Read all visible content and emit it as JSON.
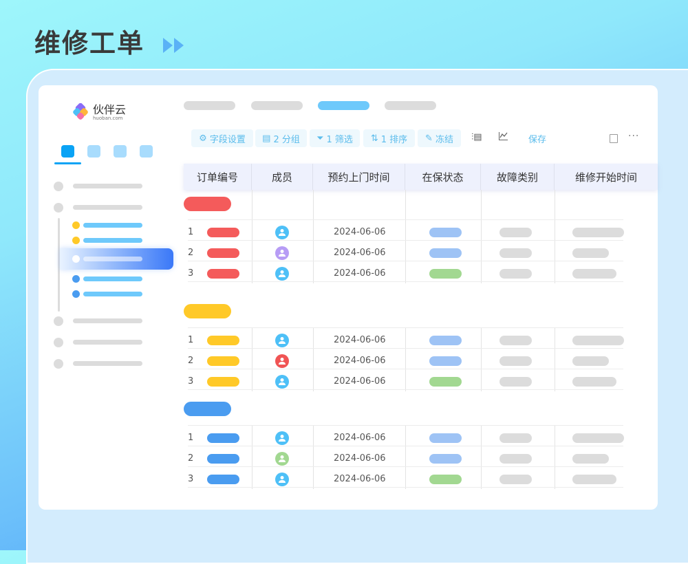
{
  "page_title": "维修工单",
  "colors": {
    "red": "#f45b5b",
    "yellow": "#ffc928",
    "blue": "#4a9cf0",
    "status_blue": "#9ec3f5",
    "status_green": "#a2d891",
    "accent": "#5bbcec"
  },
  "logo": {
    "name": "伙伴云",
    "domain": "huoban.com"
  },
  "toolbar": {
    "fields": "字段设置",
    "group": "2 分组",
    "filter": "1 筛选",
    "sort": "1 排序",
    "freeze": "冻结",
    "save": "保存"
  },
  "columns": [
    "订单编号",
    "成员",
    "预约上门时间",
    "在保状态",
    "故障类别",
    "维修开始时间"
  ],
  "groups": [
    {
      "color": "#f45b5b",
      "rows": [
        {
          "num": "1",
          "avatar": "#4ec0f7",
          "date": "2024-06-06",
          "status": "#9ec3f5"
        },
        {
          "num": "2",
          "avatar": "#b79cf5",
          "date": "2024-06-06",
          "status": "#9ec3f5"
        },
        {
          "num": "3",
          "avatar": "#4ec0f7",
          "date": "2024-06-06",
          "status": "#a2d891"
        }
      ]
    },
    {
      "color": "#ffc928",
      "rows": [
        {
          "num": "1",
          "avatar": "#4ec0f7",
          "date": "2024-06-06",
          "status": "#9ec3f5"
        },
        {
          "num": "2",
          "avatar": "#f05454",
          "date": "2024-06-06",
          "status": "#9ec3f5"
        },
        {
          "num": "3",
          "avatar": "#4ec0f7",
          "date": "2024-06-06",
          "status": "#a2d891"
        }
      ]
    },
    {
      "color": "#4a9cf0",
      "rows": [
        {
          "num": "1",
          "avatar": "#4ec0f7",
          "date": "2024-06-06",
          "status": "#9ec3f5"
        },
        {
          "num": "2",
          "avatar": "#a2d891",
          "date": "2024-06-06",
          "status": "#9ec3f5"
        },
        {
          "num": "3",
          "avatar": "#4ec0f7",
          "date": "2024-06-06",
          "status": "#a2d891"
        }
      ]
    }
  ]
}
